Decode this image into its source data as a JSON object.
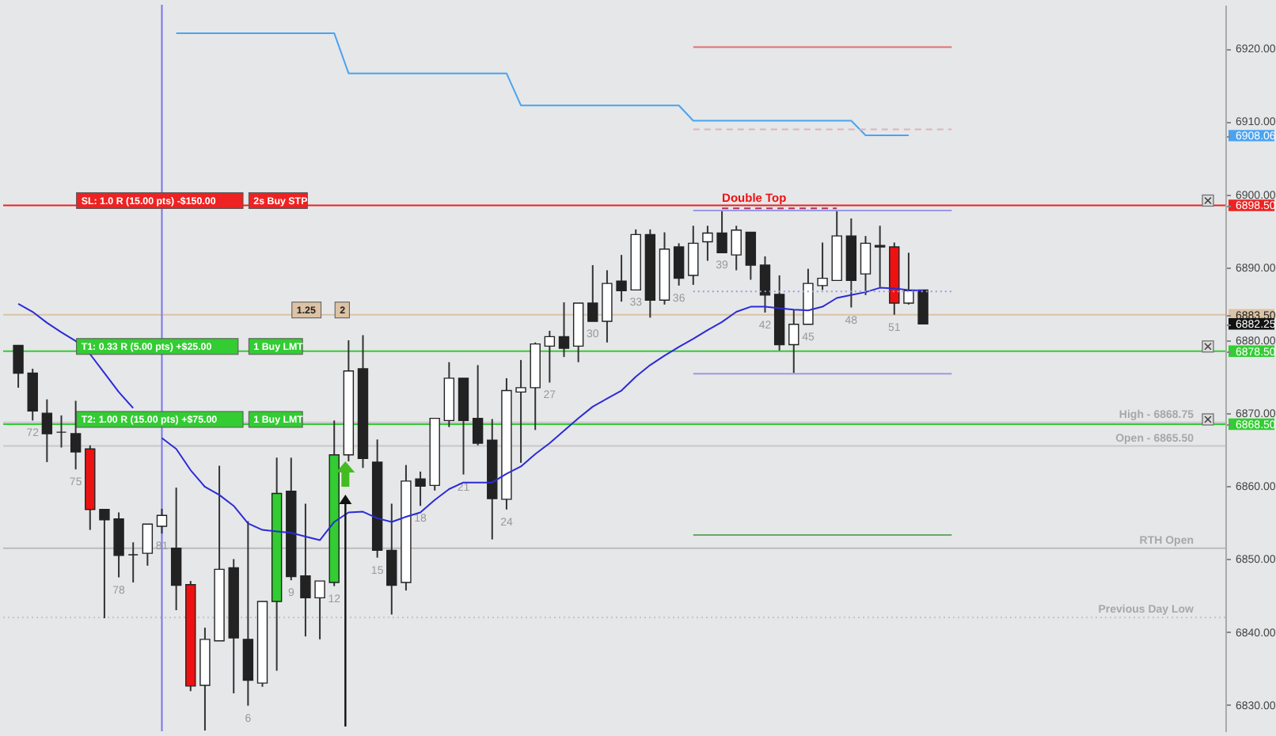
{
  "chart_data": {
    "type": "candlestick",
    "categories": [
      null,
      "72",
      null,
      null,
      "75",
      null,
      null,
      "78",
      null,
      null,
      "81",
      null,
      null,
      null,
      null,
      null,
      "6",
      null,
      null,
      "9",
      null,
      null,
      "12",
      null,
      null,
      "15",
      null,
      null,
      "18",
      null,
      null,
      "21",
      null,
      null,
      "24",
      null,
      null,
      "27",
      null,
      null,
      "30",
      null,
      null,
      "33",
      null,
      null,
      "36",
      null,
      null,
      "39",
      null,
      null,
      "42",
      null,
      null,
      "45",
      null,
      null,
      "48",
      null,
      null,
      "51",
      null,
      null,
      null,
      null,
      null,
      null,
      null,
      null,
      null,
      null,
      null,
      null,
      null,
      null,
      null,
      null,
      null,
      null,
      null,
      null,
      null,
      null
    ],
    "ohlc": [
      [
        6879.3,
        6879.3,
        6873.5,
        6875.5
      ],
      [
        6875.5,
        6876.1,
        6869.0,
        6870.3
      ],
      [
        6870.0,
        6871.9,
        6863.3,
        6867.2
      ],
      [
        6867.4,
        6869.7,
        6865.3,
        6867.4
      ],
      [
        6867.2,
        6871.7,
        6862.3,
        6864.7
      ],
      [
        6865.1,
        6865.6,
        6854.0,
        6856.8
      ],
      [
        6856.8,
        6856.8,
        6841.9,
        6855.4
      ],
      [
        6855.5,
        6856.4,
        6847.5,
        6850.5
      ],
      [
        6850.6,
        6852.3,
        6846.8,
        6850.6
      ],
      [
        6850.8,
        6854.8,
        6849.1,
        6854.8
      ],
      [
        6854.5,
        6856.9,
        6853.5,
        6856.0
      ],
      [
        6851.5,
        6859.8,
        6843.0,
        6846.4
      ],
      [
        6846.5,
        6847.0,
        6831.9,
        6832.6
      ],
      [
        6832.7,
        6840.6,
        6826.5,
        6839.0
      ],
      [
        6838.8,
        6862.8,
        6838.8,
        6848.6
      ],
      [
        6848.8,
        6850.0,
        6831.6,
        6839.2
      ],
      [
        6839.0,
        6855.2,
        6829.9,
        6833.4
      ],
      [
        6833.0,
        6844.2,
        6832.5,
        6844.2
      ],
      [
        6844.2,
        6863.9,
        6834.7,
        6859.0
      ],
      [
        6859.3,
        6863.9,
        6847.1,
        6847.6
      ],
      [
        6847.7,
        6857.6,
        6839.4,
        6844.7
      ],
      [
        6844.7,
        6847.0,
        6839.0,
        6847.0
      ],
      [
        6846.8,
        6869.0,
        6846.3,
        6864.3
      ],
      [
        6864.3,
        6880.0,
        6863.4,
        6875.8
      ],
      [
        6876.1,
        6880.7,
        6862.5,
        6863.8
      ],
      [
        6863.3,
        6866.4,
        6850.2,
        6851.2
      ],
      [
        6851.2,
        6857.6,
        6842.4,
        6846.4
      ],
      [
        6846.8,
        6862.9,
        6845.7,
        6860.7
      ],
      [
        6861.0,
        6862.0,
        6857.3,
        6860.0
      ],
      [
        6860.1,
        6869.3,
        6859.4,
        6869.3
      ],
      [
        6869.0,
        6877.0,
        6868.1,
        6874.8
      ],
      [
        6874.8,
        6874.8,
        6861.6,
        6869.0
      ],
      [
        6869.3,
        6876.6,
        6865.6,
        6865.9
      ],
      [
        6866.3,
        6869.2,
        6852.7,
        6858.3
      ],
      [
        6858.2,
        6874.8,
        6856.8,
        6873.1
      ],
      [
        6872.9,
        6877.3,
        6863.2,
        6873.5
      ],
      [
        6873.5,
        6879.7,
        6867.7,
        6879.5
      ],
      [
        6879.2,
        6881.3,
        6874.2,
        6880.5
      ],
      [
        6880.5,
        6885.2,
        6877.7,
        6878.9
      ],
      [
        6879.2,
        6885.1,
        6877.0,
        6885.1
      ],
      [
        6885.1,
        6890.3,
        6882.6,
        6882.6
      ],
      [
        6882.6,
        6889.6,
        6879.7,
        6887.8
      ],
      [
        6888.1,
        6891.7,
        6885.3,
        6886.8
      ],
      [
        6886.9,
        6895.2,
        6886.9,
        6894.5
      ],
      [
        6894.5,
        6895.2,
        6883.1,
        6885.5
      ],
      [
        6885.5,
        6894.8,
        6884.9,
        6892.5
      ],
      [
        6892.8,
        6893.3,
        6887.5,
        6888.5
      ],
      [
        6888.9,
        6895.7,
        6887.6,
        6893.3
      ],
      [
        6893.5,
        6895.7,
        6890.9,
        6894.7
      ],
      [
        6894.7,
        6897.8,
        6892.0,
        6892.0
      ],
      [
        6891.7,
        6895.7,
        6889.6,
        6895.1
      ],
      [
        6894.8,
        6894.8,
        6888.3,
        6890.3
      ],
      [
        6890.3,
        6891.5,
        6883.8,
        6886.2
      ],
      [
        6886.3,
        6888.9,
        6878.6,
        6879.4
      ],
      [
        6879.4,
        6884.2,
        6875.5,
        6882.2
      ],
      [
        6882.2,
        6889.8,
        6882.2,
        6887.8
      ],
      [
        6887.5,
        6893.4,
        6886.9,
        6888.5
      ],
      [
        6888.2,
        6897.8,
        6888.2,
        6894.3
      ],
      [
        6894.3,
        6896.7,
        6884.5,
        6888.2
      ],
      [
        6889.1,
        6894.3,
        6886.2,
        6893.3
      ],
      [
        6893.0,
        6895.7,
        6887.3,
        6892.8
      ],
      [
        6892.8,
        6893.4,
        6883.5,
        6885.1
      ],
      [
        6885.1,
        6892.0,
        6884.9,
        6886.8
      ],
      [
        6886.9,
        6886.9,
        6882.2,
        6882.25
      ],
      null,
      null,
      null,
      null,
      null,
      null,
      null,
      null,
      null,
      null,
      null,
      null,
      null,
      null,
      null,
      null,
      null,
      null,
      null,
      null
    ],
    "colors": [
      "#222222",
      "#222222",
      "#222222",
      "#222222",
      "#222222",
      "#ee1111",
      "#222222",
      "#222222",
      "#222222",
      "#ffffff",
      "#ffffff",
      "#222222",
      "#ee1111",
      "#ffffff",
      "#ffffff",
      "#222222",
      "#222222",
      "#ffffff",
      "#33cc33",
      "#222222",
      "#222222",
      "#ffffff",
      "#33cc33",
      "#ffffff",
      "#222222",
      "#222222",
      "#222222",
      "#ffffff",
      "#222222",
      "#ffffff",
      "#ffffff",
      "#222222",
      "#222222",
      "#222222",
      "#ffffff",
      "#ffffff",
      "#ffffff",
      "#ffffff",
      "#222222",
      "#ffffff",
      "#222222",
      "#ffffff",
      "#222222",
      "#ffffff",
      "#222222",
      "#ffffff",
      "#222222",
      "#ffffff",
      "#ffffff",
      "#222222",
      "#ffffff",
      "#222222",
      "#222222",
      "#222222",
      "#ffffff",
      "#ffffff",
      "#ffffff",
      "#ffffff",
      "#222222",
      "#ffffff",
      "#222222",
      "#ee1111",
      "#ffffff",
      "#222222",
      null,
      null,
      null,
      null,
      null,
      null,
      null,
      null,
      null,
      null,
      null,
      null,
      null,
      null,
      null,
      null,
      null,
      null,
      null,
      null
    ],
    "series": [
      {
        "type": "line",
        "color": "#2b2bd6",
        "values": [
          6885.0,
          6883.9,
          6882.4,
          6881.1,
          6879.9,
          6878.1,
          6875.5,
          6872.9,
          6870.7,
          null,
          6866.6,
          6865.1,
          6862.2,
          6859.9,
          6858.8,
          6857.3,
          6854.9,
          6854.0,
          6853.8,
          6853.6,
          6853.1,
          6852.6,
          6855.1,
          6856.4,
          6856.5,
          6855.6,
          6855.1,
          6855.8,
          6856.4,
          6858.1,
          6859.6,
          6860.5,
          6860.5,
          6860.5,
          6861.7,
          6862.7,
          6864.4,
          6865.9,
          6867.6,
          6869.3,
          6870.9,
          6872.0,
          6873.1,
          6875.0,
          6876.6,
          6877.9,
          6879.1,
          6880.2,
          6881.4,
          6882.5,
          6883.9,
          6884.6,
          6884.6,
          6884.4,
          6884.2,
          6884.1,
          6884.6,
          6885.8,
          6886.2,
          6886.6,
          6887.2,
          6887.1,
          6886.9,
          6886.8,
          null,
          null,
          null,
          null,
          null,
          null,
          null,
          null,
          null,
          null,
          null,
          null,
          null,
          null,
          null,
          null,
          null,
          null,
          null,
          null
        ]
      },
      {
        "type": "line",
        "color": "#4aa3f0",
        "values": [
          null,
          null,
          null,
          null,
          null,
          null,
          null,
          null,
          null,
          null,
          null,
          6922.1,
          6922.1,
          6922.1,
          6922.1,
          6922.1,
          6922.1,
          6922.1,
          6922.1,
          6922.1,
          6922.1,
          6922.1,
          6922.1,
          6916.6,
          6916.6,
          6916.6,
          6916.6,
          6916.6,
          6916.6,
          6916.6,
          6916.6,
          6916.6,
          6916.6,
          6916.6,
          6916.6,
          6912.2,
          6912.2,
          6912.2,
          6912.2,
          6912.2,
          6912.2,
          6912.2,
          6912.2,
          6912.2,
          6912.2,
          6912.2,
          6912.2,
          6910.1,
          6910.1,
          6910.1,
          6910.1,
          6910.1,
          6910.1,
          6910.1,
          6910.1,
          6910.1,
          6910.1,
          6910.1,
          6910.1,
          6908.1,
          6908.1,
          6908.1,
          6908.1,
          null,
          null,
          null,
          null,
          null,
          null,
          null,
          null,
          null,
          null,
          null,
          null,
          null,
          null,
          null,
          null,
          null,
          null,
          null,
          null,
          null
        ]
      },
      {
        "type": "line",
        "color": "#e07070",
        "values": [
          null,
          null,
          null,
          null,
          null,
          null,
          null,
          null,
          null,
          null,
          null,
          null,
          null,
          null,
          null,
          null,
          null,
          null,
          null,
          null,
          null,
          null,
          null,
          null,
          null,
          null,
          null,
          null,
          null,
          null,
          null,
          null,
          null,
          null,
          null,
          null,
          null,
          null,
          null,
          null,
          null,
          null,
          null,
          null,
          null,
          null,
          null,
          6920.2,
          6920.2,
          6920.2,
          6920.2,
          6920.2,
          6920.2,
          6920.2,
          6920.2,
          6920.2,
          6920.2,
          6920.2,
          6920.2,
          6920.2,
          6920.2,
          6920.2,
          6920.2,
          6920.2,
          6920.2,
          6920.2,
          null,
          null,
          null,
          null,
          null,
          null,
          null,
          null,
          null,
          null,
          null,
          null,
          null,
          null,
          null,
          null,
          null,
          null
        ]
      },
      {
        "type": "line",
        "color": "#ddb4b4",
        "line_style": "dashed",
        "values": [
          null,
          null,
          null,
          null,
          null,
          null,
          null,
          null,
          null,
          null,
          null,
          null,
          null,
          null,
          null,
          null,
          null,
          null,
          null,
          null,
          null,
          null,
          null,
          null,
          null,
          null,
          null,
          null,
          null,
          null,
          null,
          null,
          null,
          null,
          null,
          null,
          null,
          null,
          null,
          null,
          null,
          null,
          null,
          null,
          null,
          null,
          null,
          6908.9,
          6908.9,
          6908.9,
          6908.9,
          6908.9,
          6908.9,
          6908.9,
          6908.9,
          6908.9,
          6908.9,
          6908.9,
          6908.9,
          6908.9,
          6908.9,
          6908.9,
          6908.9,
          6908.9,
          6908.9,
          6908.9,
          null,
          null,
          null,
          null,
          null,
          null,
          null,
          null,
          null,
          null,
          null,
          null,
          null,
          null,
          null,
          null,
          null,
          null
        ]
      },
      {
        "type": "line",
        "color": "#9a9ae6",
        "values": [
          null,
          null,
          null,
          null,
          null,
          null,
          null,
          null,
          null,
          null,
          null,
          null,
          null,
          null,
          null,
          null,
          null,
          null,
          null,
          null,
          null,
          null,
          null,
          null,
          null,
          null,
          null,
          null,
          null,
          null,
          null,
          null,
          null,
          null,
          null,
          null,
          null,
          null,
          null,
          null,
          null,
          null,
          null,
          null,
          null,
          null,
          null,
          6897.8,
          6897.8,
          6897.8,
          6897.8,
          6897.8,
          6897.8,
          6897.8,
          6897.8,
          6897.8,
          6897.8,
          6897.8,
          6897.8,
          6897.8,
          6897.8,
          6897.8,
          6897.8,
          6897.8,
          6897.8,
          6897.8,
          null,
          null,
          null,
          null,
          null,
          null,
          null,
          null,
          null,
          null,
          null,
          null,
          null,
          null,
          null,
          null,
          null,
          null
        ]
      },
      {
        "type": "line",
        "color": "#9a9ae6",
        "line_style": "dotted",
        "values": [
          null,
          null,
          null,
          null,
          null,
          null,
          null,
          null,
          null,
          null,
          null,
          null,
          null,
          null,
          null,
          null,
          null,
          null,
          null,
          null,
          null,
          null,
          null,
          null,
          null,
          null,
          null,
          null,
          null,
          null,
          null,
          null,
          null,
          null,
          null,
          null,
          null,
          null,
          null,
          null,
          null,
          null,
          null,
          null,
          null,
          null,
          null,
          6886.7,
          6886.7,
          6886.7,
          6886.7,
          6886.7,
          6886.7,
          6886.7,
          6886.7,
          6886.7,
          6886.7,
          6886.7,
          6886.7,
          6886.7,
          6886.7,
          6886.7,
          6886.7,
          6886.7,
          6886.7,
          6886.7,
          null,
          null,
          null,
          null,
          null,
          null,
          null,
          null,
          null,
          null,
          null,
          null,
          null,
          null,
          null,
          null,
          null,
          null
        ]
      },
      {
        "type": "line",
        "color": "#9a9ae6",
        "values": [
          null,
          null,
          null,
          null,
          null,
          null,
          null,
          null,
          null,
          null,
          null,
          null,
          null,
          null,
          null,
          null,
          null,
          null,
          null,
          null,
          null,
          null,
          null,
          null,
          null,
          null,
          null,
          null,
          null,
          null,
          null,
          null,
          null,
          null,
          null,
          null,
          null,
          null,
          null,
          null,
          null,
          null,
          null,
          null,
          null,
          null,
          null,
          6875.4,
          6875.4,
          6875.4,
          6875.4,
          6875.4,
          6875.4,
          6875.4,
          6875.4,
          6875.4,
          6875.4,
          6875.4,
          6875.4,
          6875.4,
          6875.4,
          6875.4,
          6875.4,
          6875.4,
          6875.4,
          6875.4,
          null,
          null,
          null,
          null,
          null,
          null,
          null,
          null,
          null,
          null,
          null,
          null,
          null,
          null,
          null,
          null,
          null,
          null
        ]
      },
      {
        "type": "line",
        "color": "#66aa66",
        "values": [
          null,
          null,
          null,
          null,
          null,
          null,
          null,
          null,
          null,
          null,
          null,
          null,
          null,
          null,
          null,
          null,
          null,
          null,
          null,
          null,
          null,
          null,
          null,
          null,
          null,
          null,
          null,
          null,
          null,
          null,
          null,
          null,
          null,
          null,
          null,
          null,
          null,
          null,
          null,
          null,
          null,
          null,
          null,
          null,
          null,
          null,
          null,
          6853.3,
          6853.3,
          6853.3,
          6853.3,
          6853.3,
          6853.3,
          6853.3,
          6853.3,
          6853.3,
          6853.3,
          6853.3,
          6853.3,
          6853.3,
          6853.3,
          6853.3,
          6853.3,
          6853.3,
          6853.3,
          6853.3,
          null,
          null,
          null,
          null,
          null,
          null,
          null,
          null,
          null,
          null,
          null,
          null,
          null,
          null,
          null,
          null,
          null,
          null
        ]
      },
      {
        "type": "line",
        "color": "#aa3366",
        "line_style": "dashed",
        "values": [
          null,
          null,
          null,
          null,
          null,
          null,
          null,
          null,
          null,
          null,
          null,
          null,
          null,
          null,
          null,
          null,
          null,
          null,
          null,
          null,
          null,
          null,
          null,
          null,
          null,
          null,
          null,
          null,
          null,
          null,
          null,
          null,
          null,
          null,
          null,
          null,
          null,
          null,
          null,
          null,
          null,
          null,
          null,
          null,
          null,
          null,
          null,
          null,
          null,
          6898.1,
          6898.1,
          6898.1,
          6898.1,
          6898.1,
          6898.1,
          6898.1,
          6898.1,
          6898.1,
          null,
          null,
          null,
          null,
          null,
          null,
          null,
          null,
          null,
          null,
          null,
          null,
          null,
          null,
          null,
          null,
          null,
          null,
          null,
          null,
          null,
          null,
          null,
          null,
          null,
          null
        ]
      }
    ],
    "ylim": [
      6826.4,
      6926
    ],
    "yticks": [
      {
        "value": 6830,
        "label": "6830.00"
      },
      {
        "value": 6840,
        "label": "6840.00"
      },
      {
        "value": 6850,
        "label": "6850.00"
      },
      {
        "value": 6860,
        "label": "6860.00"
      },
      {
        "value": 6870,
        "label": "6870.00"
      },
      {
        "value": 6880,
        "label": "6880.00"
      },
      {
        "value": 6890,
        "label": "6890.00"
      },
      {
        "value": 6900,
        "label": "6900.00"
      },
      {
        "value": 6910,
        "label": "6910.00"
      },
      {
        "value": 6920,
        "label": "6920.00"
      },
      {
        "value": 6908.06,
        "label": "6908.06"
      },
      {
        "value": 6898.5,
        "label": "6898.50"
      },
      {
        "value": 6883.5,
        "label": "6883.50"
      },
      {
        "value": 6882.25,
        "label": "6882.25"
      },
      {
        "value": 6878.5,
        "label": "6878.50"
      },
      {
        "value": 6868.5,
        "label": "6868.50"
      }
    ],
    "ref_lines": [
      {
        "axis": "y",
        "value": 6898.5,
        "color": "#ee2222"
      },
      {
        "axis": "y",
        "value": 6883.5,
        "color": "#dcc3a5"
      },
      {
        "axis": "y",
        "value": 6878.5,
        "color": "#33cc33"
      },
      {
        "axis": "y",
        "value": 6868.75,
        "color": "#c8c8c8"
      },
      {
        "axis": "y",
        "value": 6868.5,
        "color": "#33cc33"
      },
      {
        "axis": "y",
        "value": 6865.5,
        "color": "#c8c8c8"
      },
      {
        "axis": "y",
        "value": 6851.5,
        "color": "#bbbbbb"
      },
      {
        "axis": "y",
        "value": 6842.0,
        "color": "#c4c4c4",
        "line_style": "dotted"
      },
      {
        "axis": "x",
        "value": "81",
        "color": "#7777ee"
      }
    ],
    "annotations": [
      {
        "text": "SL:  1.0 R  (15.00 pts) -$150.00",
        "x": "75",
        "y": 6898.5
      },
      {
        "text": "2s Buy STP",
        "x": "6",
        "y": 6898.5
      },
      {
        "text": "T1:  0.33 R  (5.00 pts) +$25.00",
        "x": "75",
        "y": 6878.5
      },
      {
        "text": "1 Buy LMT",
        "x": "6",
        "y": 6878.5
      },
      {
        "text": "T2:  1.00 R  (15.00 pts) +$75.00",
        "x": "75",
        "y": 6868.5
      },
      {
        "text": "1 Buy LMT",
        "x": "6",
        "y": 6868.5
      },
      {
        "text": "1.25",
        "x": "9",
        "y": 6883.5
      },
      {
        "text": "2",
        "x": "12",
        "y": 6883.5
      },
      {
        "text": "Double Top",
        "x": "39",
        "y": 6899.4
      },
      {
        "text": "High - 6868.75",
        "y": 6868.75
      },
      {
        "text": "Open - 6865.50",
        "y": 6865.5
      },
      {
        "text": "RTH Open",
        "y": 6851.5
      },
      {
        "text": "Previous Day Low",
        "y": 6842.0
      }
    ]
  }
}
